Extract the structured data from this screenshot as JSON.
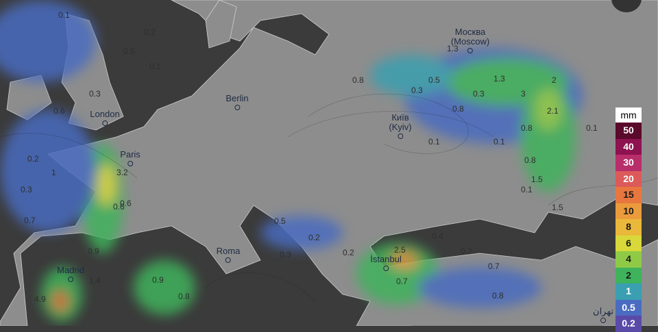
{
  "map": {
    "cities": [
      {
        "name": "Москва\n(Moscow)",
        "key": "moscow"
      },
      {
        "name": "Berlin",
        "key": "berlin"
      },
      {
        "name": "London",
        "key": "london"
      },
      {
        "name": "Paris",
        "key": "paris"
      },
      {
        "name": "Київ\n(Kyiv)",
        "key": "kyiv"
      },
      {
        "name": "Roma",
        "key": "roma"
      },
      {
        "name": "Madrid",
        "key": "madrid"
      },
      {
        "name": "İstanbul",
        "key": "istanbul"
      },
      {
        "name": "تهران",
        "key": "tehran"
      }
    ],
    "values": [
      "0.1",
      "0.2",
      "0.5",
      "0.1",
      "0.3",
      "0.6",
      "0.3",
      "0.2",
      "0.7",
      "1",
      "0.6",
      "3.2",
      "0.6",
      "0.9",
      "1.4",
      "4.9",
      "0.9",
      "0.8",
      "0.3",
      "0.5",
      "0.2",
      "0.2",
      "2.5",
      "0.7",
      "0.4",
      "0.2",
      "0.7",
      "0.8",
      "0.3",
      "0.8",
      "0.5",
      "0.3",
      "1.3",
      "3",
      "2",
      "2.1",
      "0.8",
      "0.1",
      "0.1",
      "0.8",
      "1.5",
      "1.5",
      "1.3",
      "0.8",
      "0.1",
      "0.1"
    ]
  },
  "legend": {
    "unit": "mm",
    "items": [
      {
        "label": "50",
        "color": "#5a0a2a",
        "text": "#ffffff"
      },
      {
        "label": "40",
        "color": "#8e1250",
        "text": "#ffffff"
      },
      {
        "label": "30",
        "color": "#b82e6a",
        "text": "#ffffff"
      },
      {
        "label": "20",
        "color": "#dc5a5a",
        "text": "#ffffff"
      },
      {
        "label": "15",
        "color": "#e8773f",
        "text": "#1a1a1a"
      },
      {
        "label": "10",
        "color": "#eb9b3c",
        "text": "#1a1a1a"
      },
      {
        "label": "8",
        "color": "#eab83a",
        "text": "#1a1a1a"
      },
      {
        "label": "6",
        "color": "#d8d83a",
        "text": "#1a1a1a"
      },
      {
        "label": "4",
        "color": "#8fca46",
        "text": "#1a1a1a"
      },
      {
        "label": "2",
        "color": "#3fb25c",
        "text": "#1a1a1a"
      },
      {
        "label": "1",
        "color": "#3a9fb0",
        "text": "#ffffff"
      },
      {
        "label": "0.5",
        "color": "#4a6cc0",
        "text": "#ffffff"
      },
      {
        "label": "0.2",
        "color": "#5a4aa8",
        "text": "#ffffff"
      }
    ]
  }
}
